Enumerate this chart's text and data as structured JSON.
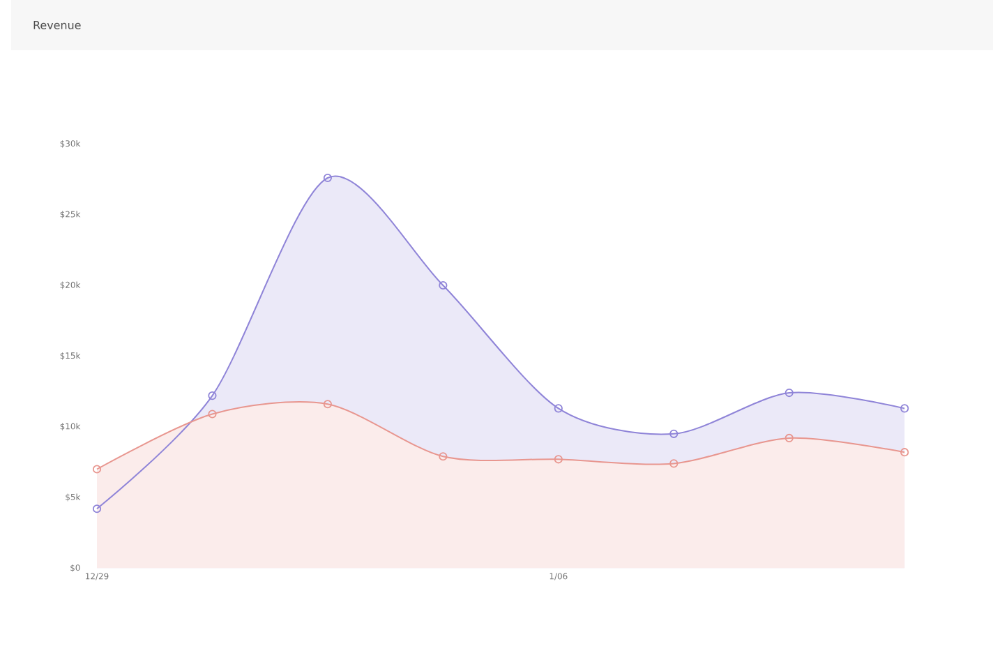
{
  "chart_data": {
    "type": "area",
    "title": "Revenue",
    "categories": [
      "12/29",
      null,
      null,
      null,
      "1/06",
      null,
      null,
      null
    ],
    "series": [
      {
        "color": "#8f84d8",
        "values": [
          4.2,
          12.2,
          27.6,
          20.0,
          11.3,
          9.5,
          12.4,
          11.3
        ]
      },
      {
        "color": "#e8968f",
        "values": [
          7.0,
          10.9,
          11.6,
          7.9,
          7.7,
          7.4,
          9.2,
          8.2
        ]
      }
    ],
    "ylim": [
      0,
      30
    ],
    "yticks": [
      {
        "value": 0,
        "label": "$0"
      },
      {
        "value": 5,
        "label": "$5k"
      },
      {
        "value": 10,
        "label": "$10k"
      },
      {
        "value": 15,
        "label": "$15k"
      },
      {
        "value": 20,
        "label": "$20k"
      },
      {
        "value": 25,
        "label": "$25k"
      },
      {
        "value": 30,
        "label": "$30k"
      }
    ],
    "marker": "circle",
    "grid": false
  }
}
